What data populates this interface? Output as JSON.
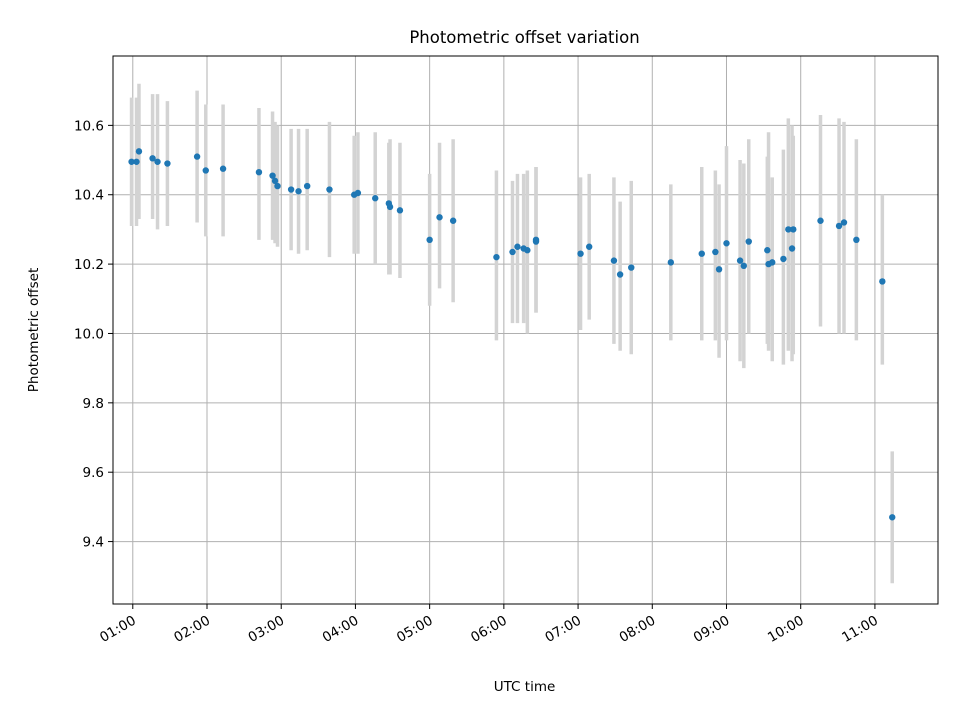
{
  "chart_data": {
    "type": "scatter",
    "title": "Photometric offset variation",
    "xlabel": "UTC time",
    "ylabel": "Photometric offset",
    "x_unit": "time (HH:MM)",
    "xlim": [
      "00:44",
      "11:51"
    ],
    "ylim": [
      9.22,
      10.8
    ],
    "x_ticks": [
      "01:00",
      "02:00",
      "03:00",
      "04:00",
      "05:00",
      "06:00",
      "07:00",
      "08:00",
      "09:00",
      "10:00",
      "11:00"
    ],
    "y_ticks": [
      9.4,
      9.6,
      9.8,
      10.0,
      10.2,
      10.4,
      10.6
    ],
    "y_tick_labels": [
      "9.4",
      "9.6",
      "9.8",
      "10.0",
      "10.2",
      "10.4",
      "10.6"
    ],
    "grid": true,
    "legend": "none",
    "colors": {
      "point": "#1f77b4",
      "errorbar": "#d3d3d3",
      "grid": "#b0b0b0"
    },
    "series": [
      {
        "x": [
          "00:59",
          "01:03",
          "01:05",
          "01:16",
          "01:20",
          "01:28",
          "01:52",
          "01:59",
          "02:13",
          "02:42",
          "02:53",
          "02:55",
          "02:57",
          "03:08",
          "03:14",
          "03:21",
          "03:39",
          "03:59",
          "04:02",
          "04:16",
          "04:27",
          "04:28",
          "04:36",
          "05:00",
          "05:08",
          "05:19",
          "05:54",
          "06:07",
          "06:11",
          "06:16",
          "06:19",
          "06:26",
          "06:26",
          "07:02",
          "07:09",
          "07:29",
          "07:34",
          "07:43",
          "08:15",
          "08:40",
          "08:51",
          "08:54",
          "09:00",
          "09:11",
          "09:14",
          "09:18",
          "09:33",
          "09:34",
          "09:37",
          "09:46",
          "09:50",
          "09:53",
          "09:54",
          "10:16",
          "10:31",
          "10:35",
          "10:45",
          "11:06",
          "11:14"
        ],
        "y": [
          10.495,
          10.495,
          10.525,
          10.505,
          10.495,
          10.49,
          10.51,
          10.47,
          10.475,
          10.465,
          10.455,
          10.44,
          10.425,
          10.415,
          10.41,
          10.425,
          10.415,
          10.4,
          10.405,
          10.39,
          10.375,
          10.365,
          10.355,
          10.27,
          10.335,
          10.325,
          10.22,
          10.235,
          10.25,
          10.245,
          10.24,
          10.27,
          10.265,
          10.23,
          10.25,
          10.21,
          10.17,
          10.19,
          10.205,
          10.23,
          10.235,
          10.185,
          10.26,
          10.21,
          10.195,
          10.265,
          10.24,
          10.2,
          10.205,
          10.215,
          10.3,
          10.245,
          10.3,
          10.325,
          10.31,
          10.32,
          10.27,
          10.15,
          9.47
        ],
        "y_low": [
          10.31,
          10.31,
          10.33,
          10.33,
          10.3,
          10.31,
          10.32,
          10.28,
          10.28,
          10.27,
          10.27,
          10.26,
          10.25,
          10.24,
          10.23,
          10.24,
          10.22,
          10.23,
          10.23,
          10.2,
          10.17,
          10.17,
          10.16,
          10.08,
          10.13,
          10.09,
          9.98,
          10.03,
          10.03,
          10.03,
          10.0,
          10.06,
          10.06,
          10.01,
          10.04,
          9.97,
          9.95,
          9.94,
          9.98,
          9.98,
          9.98,
          9.93,
          9.98,
          9.92,
          9.9,
          10.0,
          9.97,
          9.95,
          9.92,
          9.91,
          9.95,
          9.92,
          9.94,
          10.02,
          10.0,
          10.0,
          9.98,
          9.91,
          9.28
        ],
        "y_high": [
          10.68,
          10.68,
          10.72,
          10.69,
          10.69,
          10.67,
          10.7,
          10.66,
          10.66,
          10.65,
          10.64,
          10.61,
          10.6,
          10.59,
          10.59,
          10.59,
          10.61,
          10.57,
          10.58,
          10.58,
          10.55,
          10.56,
          10.55,
          10.46,
          10.55,
          10.56,
          10.47,
          10.44,
          10.46,
          10.46,
          10.47,
          10.48,
          10.48,
          10.45,
          10.46,
          10.45,
          10.38,
          10.44,
          10.43,
          10.48,
          10.47,
          10.43,
          10.54,
          10.5,
          10.49,
          10.56,
          10.51,
          10.58,
          10.45,
          10.53,
          10.62,
          10.6,
          10.57,
          10.63,
          10.62,
          10.61,
          10.56,
          10.4,
          9.66
        ]
      }
    ]
  }
}
